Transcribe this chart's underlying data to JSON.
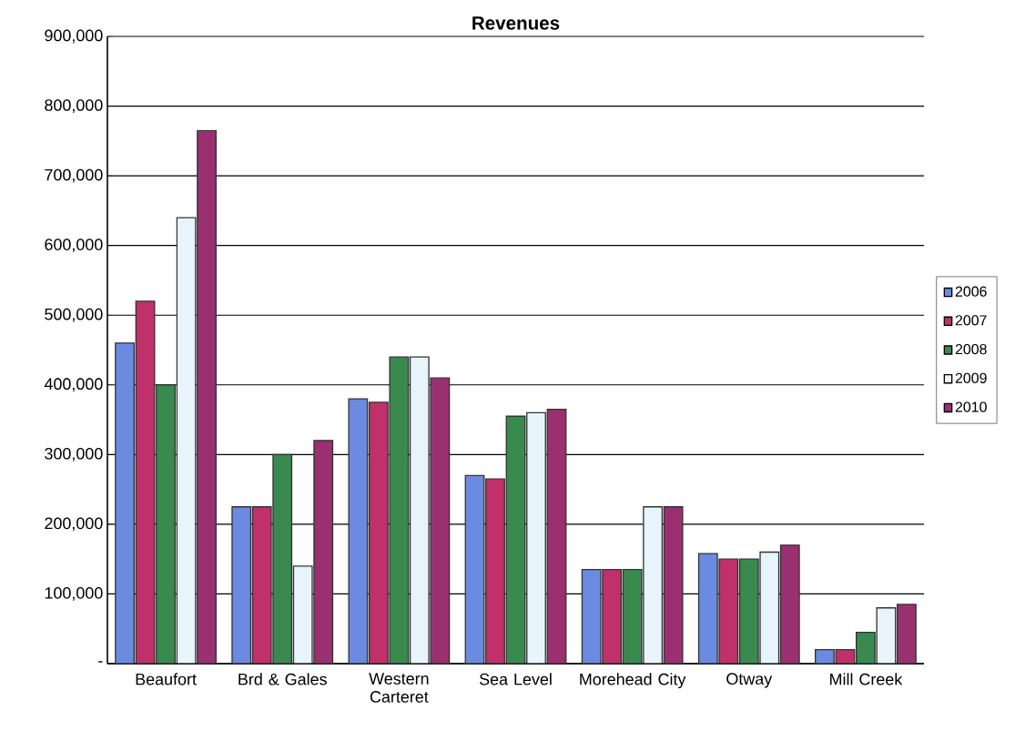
{
  "chart_data": {
    "type": "bar",
    "title": "Revenues",
    "categories": [
      "Beaufort",
      "Brd & Gales",
      "Western Carteret",
      "Sea Level",
      "Morehead City",
      "Otway",
      "Mill Creek"
    ],
    "series": [
      {
        "name": "2006",
        "color": "#6b8be0",
        "values": [
          460000,
          225000,
          380000,
          270000,
          135000,
          158000,
          20000
        ]
      },
      {
        "name": "2007",
        "color": "#c0306a",
        "values": [
          520000,
          225000,
          375000,
          265000,
          135000,
          150000,
          20000
        ]
      },
      {
        "name": "2008",
        "color": "#3a8a50",
        "values": [
          400000,
          300000,
          440000,
          355000,
          135000,
          150000,
          45000
        ]
      },
      {
        "name": "2009",
        "color": "#e8f4fb",
        "values": [
          640000,
          140000,
          440000,
          360000,
          225000,
          160000,
          80000
        ]
      },
      {
        "name": "2010",
        "color": "#9a3070",
        "values": [
          765000,
          320000,
          410000,
          365000,
          225000,
          170000,
          85000
        ]
      }
    ],
    "ylim": [
      0,
      900000
    ],
    "yticks": [
      {
        "value": 0,
        "label": "-"
      },
      {
        "value": 100000,
        "label": "100,000"
      },
      {
        "value": 200000,
        "label": "200,000"
      },
      {
        "value": 300000,
        "label": "300,000"
      },
      {
        "value": 400000,
        "label": "400,000"
      },
      {
        "value": 500000,
        "label": "500,000"
      },
      {
        "value": 600000,
        "label": "600,000"
      },
      {
        "value": 700000,
        "label": "700,000"
      },
      {
        "value": 800000,
        "label": "800,000"
      },
      {
        "value": 900000,
        "label": "900,000"
      }
    ],
    "grid": "y",
    "legend": "right"
  }
}
